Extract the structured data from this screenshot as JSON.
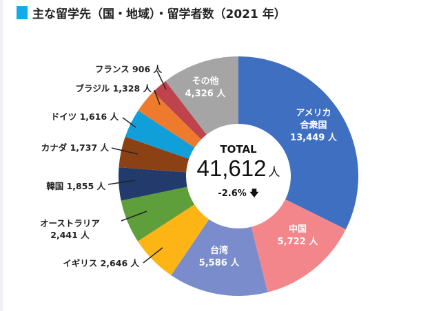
{
  "title": "主な留学先（国・地域）・留学者数（2021 年）",
  "title_marker_color": "#14A9E8",
  "chart_data": {
    "type": "pie",
    "subtype": "donut",
    "title": "主な留学先（国・地域）・留学者数（2021 年）",
    "unit": "人",
    "total_label": "TOTAL",
    "total_value": "41,612",
    "total_unit": "人",
    "change": "-2.6%",
    "change_direction": "down",
    "start": "top",
    "direction": "clockwise",
    "slices": [
      {
        "name": "アメリカ合衆国",
        "name_l1": "アメリカ",
        "name_l2": "合衆国",
        "value": 13449,
        "value_label": "13,449 人",
        "color": "#3F6FC1"
      },
      {
        "name": "中国",
        "value": 5722,
        "value_label": "5,722 人",
        "color": "#F2868A"
      },
      {
        "name": "台湾",
        "value": 5586,
        "value_label": "5,586 人",
        "color": "#7A8CCB"
      },
      {
        "name": "イギリス",
        "value": 2646,
        "value_label": "2,646 人",
        "color": "#FDB515"
      },
      {
        "name": "オーストラリア",
        "value": 2441,
        "value_label": "2,441 人",
        "color": "#5E9E3B"
      },
      {
        "name": "韓国",
        "value": 1855,
        "value_label": "1,855 人",
        "color": "#233B6C"
      },
      {
        "name": "カナダ",
        "value": 1737,
        "value_label": "1,737 人",
        "color": "#8C4114"
      },
      {
        "name": "ドイツ",
        "value": 1616,
        "value_label": "1,616 人",
        "color": "#109FD8"
      },
      {
        "name": "ブラジル",
        "value": 1328,
        "value_label": "1,328 人",
        "color": "#EE7A2E"
      },
      {
        "name": "フランス",
        "value": 906,
        "value_label": "906 人",
        "color": "#BE434D"
      },
      {
        "name": "その他",
        "value": 4326,
        "value_label": "4,326 人",
        "color": "#A5A5A5"
      }
    ]
  }
}
